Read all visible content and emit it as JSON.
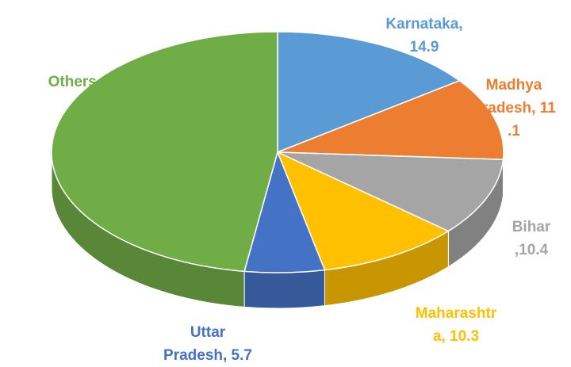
{
  "chart_data": {
    "type": "pie3d",
    "values": [
      14.9,
      11.1,
      10.4,
      10.3,
      5.7,
      47.7
    ],
    "value_labels": [
      "Karnataka, 14.9",
      "Madhya Pradesh, 11.1",
      "Bihar ,10.4",
      "Maharashtra, 10.3",
      "Uttar Pradesh, 5.7",
      "Others, 47.7"
    ],
    "colors": [
      "#5b9bd5",
      "#ed7d31",
      "#a5a5a5",
      "#ffc000",
      "#4472c4",
      "#70ad47"
    ],
    "label_colors": [
      "#5b9bd5",
      "#ed7d31",
      "#a5a5a5",
      "#ffc000",
      "#4472c4",
      "#70ad47"
    ]
  }
}
